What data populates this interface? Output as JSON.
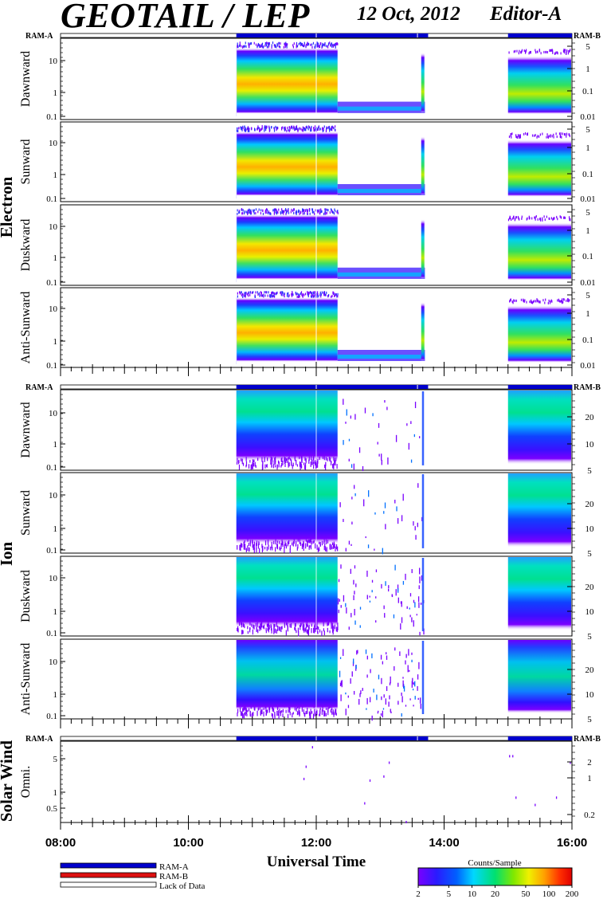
{
  "header": {
    "title": "GEOTAIL / LEP",
    "date": "12 Oct, 2012",
    "editor": "Editor-A"
  },
  "ram_labels": {
    "left": "RAM-A",
    "right": "RAM-B"
  },
  "chart_data": {
    "type": "heatmap",
    "x_axis": {
      "label": "Universal Time",
      "range": [
        "08:00",
        "16:00"
      ],
      "tick_labels": [
        "08:00",
        "10:00",
        "12:00",
        "14:00",
        "16:00"
      ],
      "minor_tick_minutes": 10
    },
    "ram_bar": {
      "RAM-A_blue_intervals": [
        [
          "10:45",
          "12:00"
        ],
        [
          "12:00",
          "13:35"
        ],
        [
          "13:35",
          "13:45"
        ],
        [
          "15:00",
          "16:00"
        ]
      ],
      "lack_of_data_intervals": [
        [
          "08:00",
          "10:45"
        ],
        [
          "13:45",
          "15:00"
        ]
      ]
    },
    "groups": [
      {
        "name": "Electron",
        "panels": [
          {
            "label": "Dawnward",
            "left_ticks": [
              "10",
              "1",
              "0.1"
            ],
            "right_ticks": [
              "5",
              "1",
              "0.1",
              "0.01"
            ]
          },
          {
            "label": "Sunward",
            "left_ticks": [
              "10",
              "1",
              "0.1"
            ],
            "right_ticks": [
              "5",
              "1",
              "0.1",
              "0.01"
            ]
          },
          {
            "label": "Duskward",
            "left_ticks": [
              "10",
              "1",
              "0.1"
            ],
            "right_ticks": [
              "5",
              "1",
              "0.1",
              "0.01"
            ]
          },
          {
            "label": "Anti-Sunward",
            "left_ticks": [
              "10",
              "1",
              "0.1"
            ],
            "right_ticks": [
              "5",
              "1",
              "0.1",
              "0.01"
            ]
          }
        ]
      },
      {
        "name": "Ion",
        "panels": [
          {
            "label": "Dawnward",
            "left_ticks": [
              "10",
              "1",
              "0.1"
            ],
            "right_ticks": [
              "20",
              "10",
              "5"
            ]
          },
          {
            "label": "Sunward",
            "left_ticks": [
              "10",
              "1",
              "0.1"
            ],
            "right_ticks": [
              "20",
              "10",
              "5"
            ]
          },
          {
            "label": "Duskward",
            "left_ticks": [
              "10",
              "1",
              "0.1"
            ],
            "right_ticks": [
              "20",
              "10",
              "5"
            ]
          },
          {
            "label": "Anti-Sunward",
            "left_ticks": [
              "10",
              "1",
              "0.1"
            ],
            "right_ticks": [
              "20",
              "10",
              "5"
            ]
          }
        ]
      },
      {
        "name": "Solar Wind",
        "panels": [
          {
            "label": "Omni.",
            "left_ticks": [
              "5",
              "1",
              "0.5"
            ],
            "right_ticks": [
              "2",
              "1",
              "0.2"
            ]
          }
        ]
      }
    ],
    "data_gaps": [
      [
        "08:00",
        "10:45"
      ],
      [
        "13:45",
        "15:00"
      ]
    ],
    "legend": {
      "items": [
        {
          "label": "RAM-A",
          "color": "#0000cc"
        },
        {
          "label": "RAM-B",
          "color": "#dd1111"
        },
        {
          "label": "Lack of Data",
          "color": "#ffffff"
        }
      ]
    },
    "colorbar": {
      "title": "Counts/Sample",
      "tick_labels": [
        "2",
        "5",
        "10",
        "20",
        "50",
        "100",
        "200"
      ],
      "scale": "log",
      "range": [
        2,
        200
      ]
    }
  }
}
